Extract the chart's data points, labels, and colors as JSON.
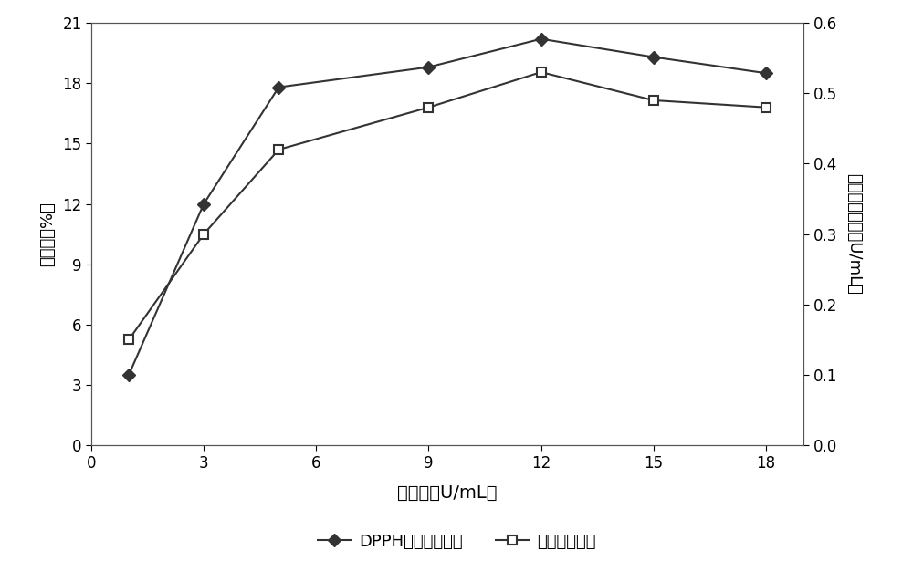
{
  "x": [
    1,
    3,
    5,
    9,
    12,
    15,
    18
  ],
  "dpph_y": [
    3.5,
    12.0,
    17.8,
    18.8,
    20.2,
    19.3,
    18.5
  ],
  "taoc_y": [
    0.15,
    0.3,
    0.42,
    0.48,
    0.53,
    0.49,
    0.48
  ],
  "left_ylim": [
    0,
    21
  ],
  "right_ylim": [
    0,
    0.6
  ],
  "left_yticks": [
    0,
    3,
    6,
    9,
    12,
    15,
    18,
    21
  ],
  "right_yticks": [
    0.0,
    0.1,
    0.2,
    0.3,
    0.4,
    0.5,
    0.6
  ],
  "xticks": [
    0,
    3,
    6,
    9,
    12,
    15,
    18
  ],
  "xlim": [
    0,
    19
  ],
  "xlabel": "加酶量（U∕mL）",
  "ylabel_left": "清除率（%）",
  "ylabel_right": "总抗氧化活力（U∕mL）",
  "legend_dpph": "DPPH自由基清除率",
  "legend_taoc": "总抗氧化活力",
  "line_color": "#333333",
  "bg_color": "#ffffff",
  "plot_bg_color": "#ffffff"
}
